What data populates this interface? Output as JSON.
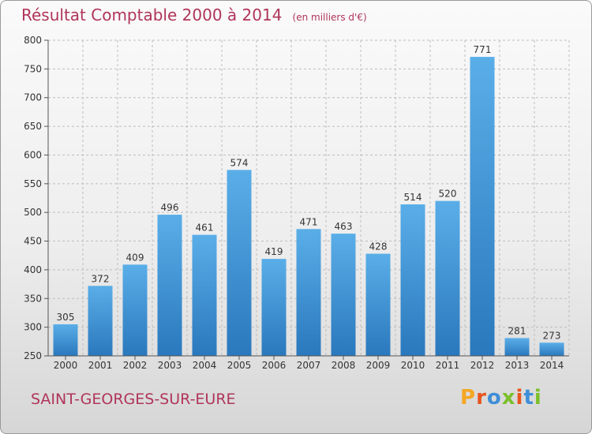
{
  "title": "Résultat Comptable 2000 à 2014",
  "unit_note": "(en milliers d'€)",
  "commune": "SAINT-GEORGES-SUR-EURE",
  "logo": {
    "text": "Proxiti",
    "letter_colors": [
      "#f5a623",
      "#e8551f",
      "#3f8ed8",
      "#7bbf2a",
      "#e8551f",
      "#3f8ed8",
      "#7bbf2a"
    ]
  },
  "colors": {
    "bar_top": "#5aaee8",
    "bar_bottom": "#2a78bd",
    "title": "#b0355a",
    "grid": "#bdbdbd"
  },
  "chart_data": {
    "type": "bar",
    "categories": [
      "2000",
      "2001",
      "2002",
      "2003",
      "2004",
      "2005",
      "2006",
      "2007",
      "2008",
      "2009",
      "2010",
      "2011",
      "2012",
      "2013",
      "2014"
    ],
    "values": [
      305,
      372,
      409,
      496,
      461,
      574,
      419,
      471,
      463,
      428,
      514,
      520,
      771,
      281,
      273
    ],
    "ylim": [
      250,
      800
    ],
    "yticks": [
      250,
      300,
      350,
      400,
      450,
      500,
      550,
      600,
      650,
      700,
      750,
      800
    ],
    "grid": true,
    "data_labels": true
  }
}
